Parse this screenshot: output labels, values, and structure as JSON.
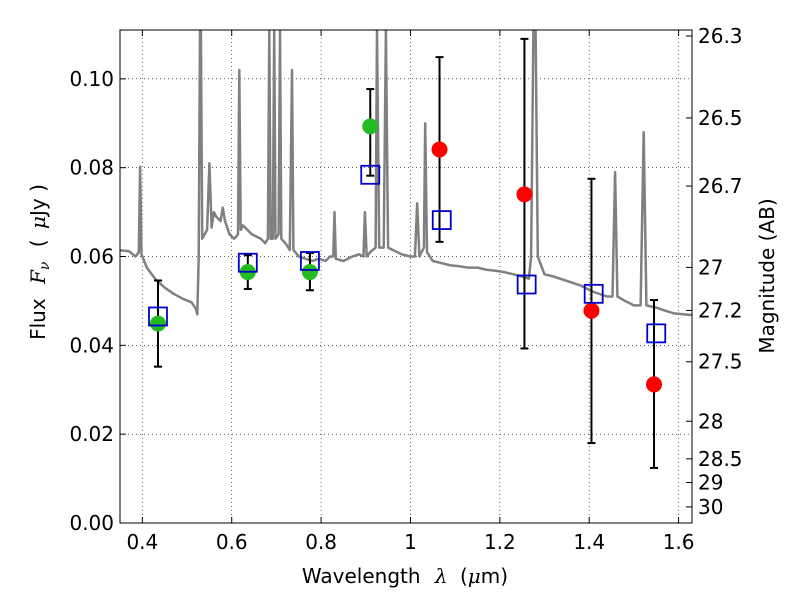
{
  "chart_data": {
    "type": "scatter",
    "xlabel_text": "Wavelength",
    "xlabel_symbol": "λ",
    "xlabel_unit_open": "(",
    "xlabel_unit_mu": "μ",
    "xlabel_unit_rest": "m)",
    "ylabel_text": "Flux",
    "ylabel_symbol": "F",
    "ylabel_symbol_sub": "ν",
    "ylabel_unit_open": "(",
    "ylabel_unit_mu": "μ",
    "ylabel_unit_rest": "Jy )",
    "y2label": "Magnitude (AB)",
    "xlim": [
      0.35,
      1.63
    ],
    "ylim": [
      0.0,
      0.111
    ],
    "x_ticks": [
      0.4,
      0.6,
      0.8,
      1.0,
      1.2,
      1.4,
      1.6
    ],
    "x_tick_labels": [
      "0.4",
      "0.6",
      "0.8",
      "1",
      "1.2",
      "1.4",
      "1.6"
    ],
    "y_ticks": [
      0.0,
      0.02,
      0.04,
      0.06,
      0.08,
      0.1
    ],
    "y_tick_labels": [
      "0.00",
      "0.02",
      "0.04",
      "0.06",
      "0.08",
      "0.10"
    ],
    "y2_ticks": [
      {
        "label": "26.3",
        "value": 26.3
      },
      {
        "label": "26.5",
        "value": 26.5
      },
      {
        "label": "26.7",
        "value": 26.7
      },
      {
        "label": "27",
        "value": 27.0
      },
      {
        "label": "27.2",
        "value": 27.2
      },
      {
        "label": "27.5",
        "value": 27.5
      },
      {
        "label": "28",
        "value": 28.0
      },
      {
        "label": "28.5",
        "value": 28.5
      },
      {
        "label": "29",
        "value": 29.0
      },
      {
        "label": "30",
        "value": 30.0
      }
    ],
    "grid": true,
    "colors": {
      "spectrum": "#808080",
      "detection": "#22bb22",
      "non_detection": "#ff0000",
      "model": "#0000cc",
      "errorbar": "#000000"
    },
    "observed_points": [
      {
        "x": 0.435,
        "y": 0.0449,
        "status": "detection",
        "err": [
          0.0352,
          0.0546
        ]
      },
      {
        "x": 0.636,
        "y": 0.0565,
        "status": "detection",
        "err": [
          0.0527,
          0.0603
        ]
      },
      {
        "x": 0.775,
        "y": 0.0565,
        "status": "detection",
        "err": [
          0.0524,
          0.0608
        ]
      },
      {
        "x": 0.91,
        "y": 0.0893,
        "status": "detection",
        "err": [
          0.0782,
          0.0977
        ]
      },
      {
        "x": 1.065,
        "y": 0.0841,
        "status": "non_detection",
        "err": [
          0.0633,
          0.1049
        ]
      },
      {
        "x": 1.255,
        "y": 0.074,
        "status": "non_detection",
        "err": [
          0.0393,
          0.109
        ]
      },
      {
        "x": 1.405,
        "y": 0.0478,
        "status": "non_detection",
        "err": [
          0.018,
          0.0775
        ]
      },
      {
        "x": 1.545,
        "y": 0.0312,
        "status": "non_detection",
        "err": [
          0.0124,
          0.0502
        ]
      }
    ],
    "model_photometry": [
      {
        "x": 0.435,
        "y": 0.0465
      },
      {
        "x": 0.636,
        "y": 0.0586
      },
      {
        "x": 0.775,
        "y": 0.059
      },
      {
        "x": 0.91,
        "y": 0.0784
      },
      {
        "x": 1.07,
        "y": 0.0682
      },
      {
        "x": 1.26,
        "y": 0.0537
      },
      {
        "x": 1.41,
        "y": 0.0516
      },
      {
        "x": 1.55,
        "y": 0.0427
      }
    ],
    "spectrum": [
      [
        0.35,
        0.0614
      ],
      [
        0.37,
        0.0612
      ],
      [
        0.385,
        0.06
      ],
      [
        0.392,
        0.061
      ],
      [
        0.395,
        0.0802
      ],
      [
        0.398,
        0.0605
      ],
      [
        0.41,
        0.0575
      ],
      [
        0.43,
        0.0548
      ],
      [
        0.45,
        0.053
      ],
      [
        0.47,
        0.0516
      ],
      [
        0.49,
        0.0505
      ],
      [
        0.51,
        0.0497
      ],
      [
        0.52,
        0.0482
      ],
      [
        0.523,
        0.047
      ],
      [
        0.526,
        0.06
      ],
      [
        0.529,
        0.111
      ],
      [
        0.531,
        0.111
      ],
      [
        0.534,
        0.064
      ],
      [
        0.545,
        0.066
      ],
      [
        0.55,
        0.081
      ],
      [
        0.555,
        0.0665
      ],
      [
        0.56,
        0.07
      ],
      [
        0.565,
        0.069
      ],
      [
        0.575,
        0.068
      ],
      [
        0.58,
        0.071
      ],
      [
        0.585,
        0.068
      ],
      [
        0.595,
        0.065
      ],
      [
        0.605,
        0.064
      ],
      [
        0.61,
        0.0645
      ],
      [
        0.614,
        0.065
      ],
      [
        0.617,
        0.102
      ],
      [
        0.62,
        0.066
      ],
      [
        0.625,
        0.067
      ],
      [
        0.635,
        0.066
      ],
      [
        0.645,
        0.065
      ],
      [
        0.655,
        0.0645
      ],
      [
        0.665,
        0.064
      ],
      [
        0.675,
        0.063
      ],
      [
        0.681,
        0.064
      ],
      [
        0.684,
        0.111
      ],
      [
        0.687,
        0.064
      ],
      [
        0.692,
        0.064
      ],
      [
        0.695,
        0.111
      ],
      [
        0.698,
        0.064
      ],
      [
        0.705,
        0.065
      ],
      [
        0.708,
        0.111
      ],
      [
        0.711,
        0.064
      ],
      [
        0.72,
        0.063
      ],
      [
        0.73,
        0.0615
      ],
      [
        0.735,
        0.102
      ],
      [
        0.738,
        0.0615
      ],
      [
        0.75,
        0.06
      ],
      [
        0.765,
        0.0595
      ],
      [
        0.78,
        0.059
      ],
      [
        0.795,
        0.0595
      ],
      [
        0.81,
        0.059
      ],
      [
        0.82,
        0.06
      ],
      [
        0.827,
        0.06
      ],
      [
        0.83,
        0.07
      ],
      [
        0.833,
        0.0595
      ],
      [
        0.85,
        0.059
      ],
      [
        0.87,
        0.06
      ],
      [
        0.885,
        0.0605
      ],
      [
        0.895,
        0.06
      ],
      [
        0.898,
        0.07
      ],
      [
        0.902,
        0.06
      ],
      [
        0.91,
        0.061
      ],
      [
        0.922,
        0.062
      ],
      [
        0.925,
        0.111
      ],
      [
        0.93,
        0.062
      ],
      [
        0.94,
        0.062
      ],
      [
        0.945,
        0.111
      ],
      [
        0.95,
        0.062
      ],
      [
        0.96,
        0.0615
      ],
      [
        0.98,
        0.0605
      ],
      [
        1.0,
        0.06
      ],
      [
        1.01,
        0.06
      ],
      [
        1.015,
        0.072
      ],
      [
        1.02,
        0.06
      ],
      [
        1.03,
        0.062
      ],
      [
        1.033,
        0.09
      ],
      [
        1.037,
        0.061
      ],
      [
        1.05,
        0.059
      ],
      [
        1.07,
        0.0585
      ],
      [
        1.09,
        0.058
      ],
      [
        1.11,
        0.0578
      ],
      [
        1.13,
        0.0575
      ],
      [
        1.15,
        0.0575
      ],
      [
        1.17,
        0.057
      ],
      [
        1.19,
        0.0568
      ],
      [
        1.21,
        0.0565
      ],
      [
        1.23,
        0.056
      ],
      [
        1.25,
        0.0555
      ],
      [
        1.265,
        0.055
      ],
      [
        1.27,
        0.06
      ],
      [
        1.275,
        0.111
      ],
      [
        1.28,
        0.111
      ],
      [
        1.285,
        0.06
      ],
      [
        1.3,
        0.056
      ],
      [
        1.32,
        0.0555
      ],
      [
        1.35,
        0.0545
      ],
      [
        1.38,
        0.0535
      ],
      [
        1.41,
        0.052
      ],
      [
        1.44,
        0.051
      ],
      [
        1.452,
        0.051
      ],
      [
        1.458,
        0.079
      ],
      [
        1.463,
        0.051
      ],
      [
        1.48,
        0.05
      ],
      [
        1.5,
        0.049
      ],
      [
        1.515,
        0.049
      ],
      [
        1.522,
        0.088
      ],
      [
        1.528,
        0.049
      ],
      [
        1.55,
        0.0485
      ],
      [
        1.57,
        0.0478
      ],
      [
        1.59,
        0.0472
      ],
      [
        1.61,
        0.047
      ],
      [
        1.63,
        0.0468
      ]
    ]
  }
}
